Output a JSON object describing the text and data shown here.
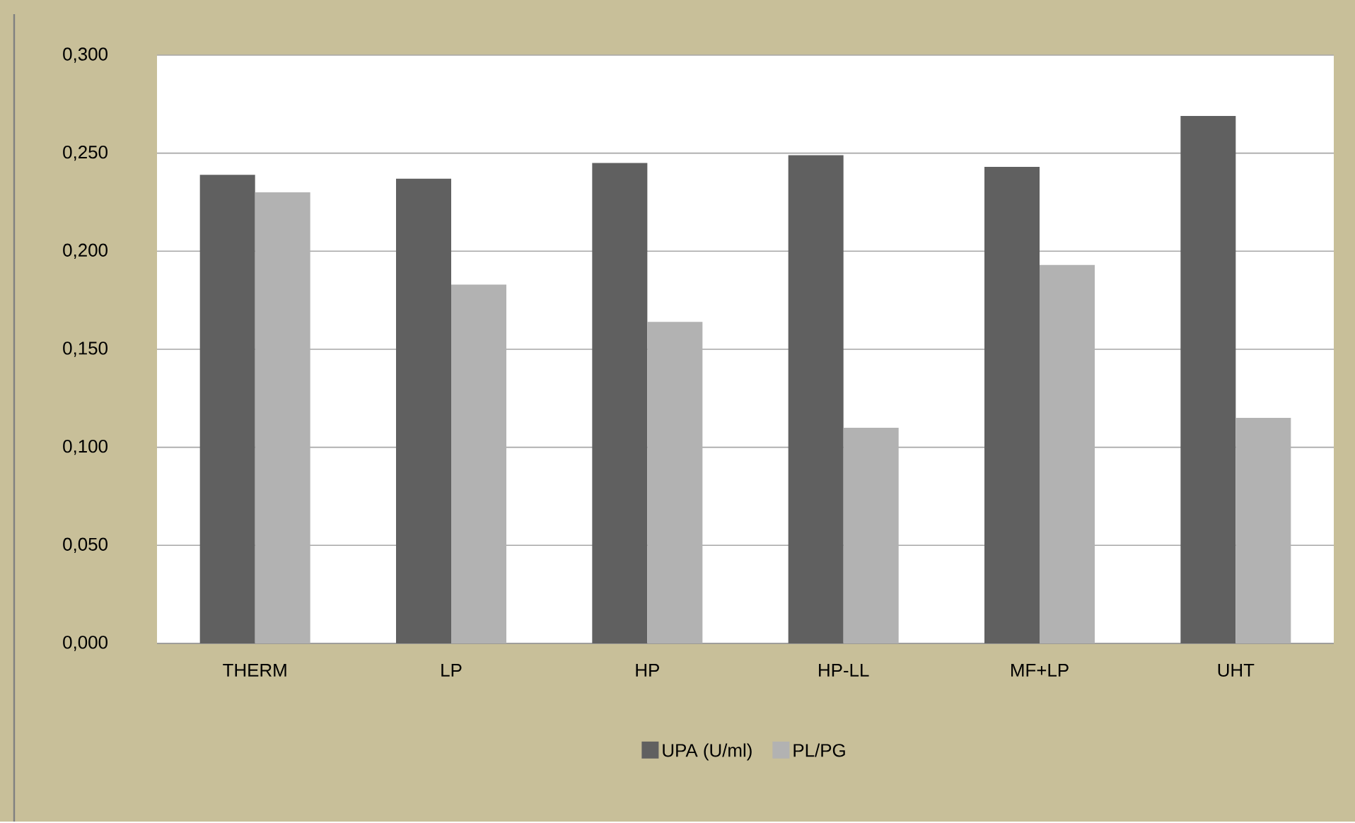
{
  "chart_data": {
    "type": "bar",
    "categories": [
      "THERM",
      "LP",
      "HP",
      "HP-LL",
      "MF+LP",
      "UHT"
    ],
    "series": [
      {
        "name": "UPA (U/ml)",
        "color": "#606060",
        "values": [
          0.239,
          0.237,
          0.245,
          0.249,
          0.243,
          0.269
        ]
      },
      {
        "name": "PL/PG",
        "color": "#b2b2b2",
        "values": [
          0.23,
          0.183,
          0.164,
          0.11,
          0.193,
          0.115
        ]
      }
    ],
    "ylim": [
      0,
      0.3
    ],
    "yticks": [
      {
        "value": 0,
        "label": "0,000"
      },
      {
        "value": 0.05,
        "label": "0,050"
      },
      {
        "value": 0.1,
        "label": "0,100"
      },
      {
        "value": 0.15,
        "label": "0,150"
      },
      {
        "value": 0.2,
        "label": "0,200"
      },
      {
        "value": 0.25,
        "label": "0,250"
      },
      {
        "value": 0.3,
        "label": "0,300"
      }
    ],
    "grid": "y",
    "legend": "bottom"
  }
}
